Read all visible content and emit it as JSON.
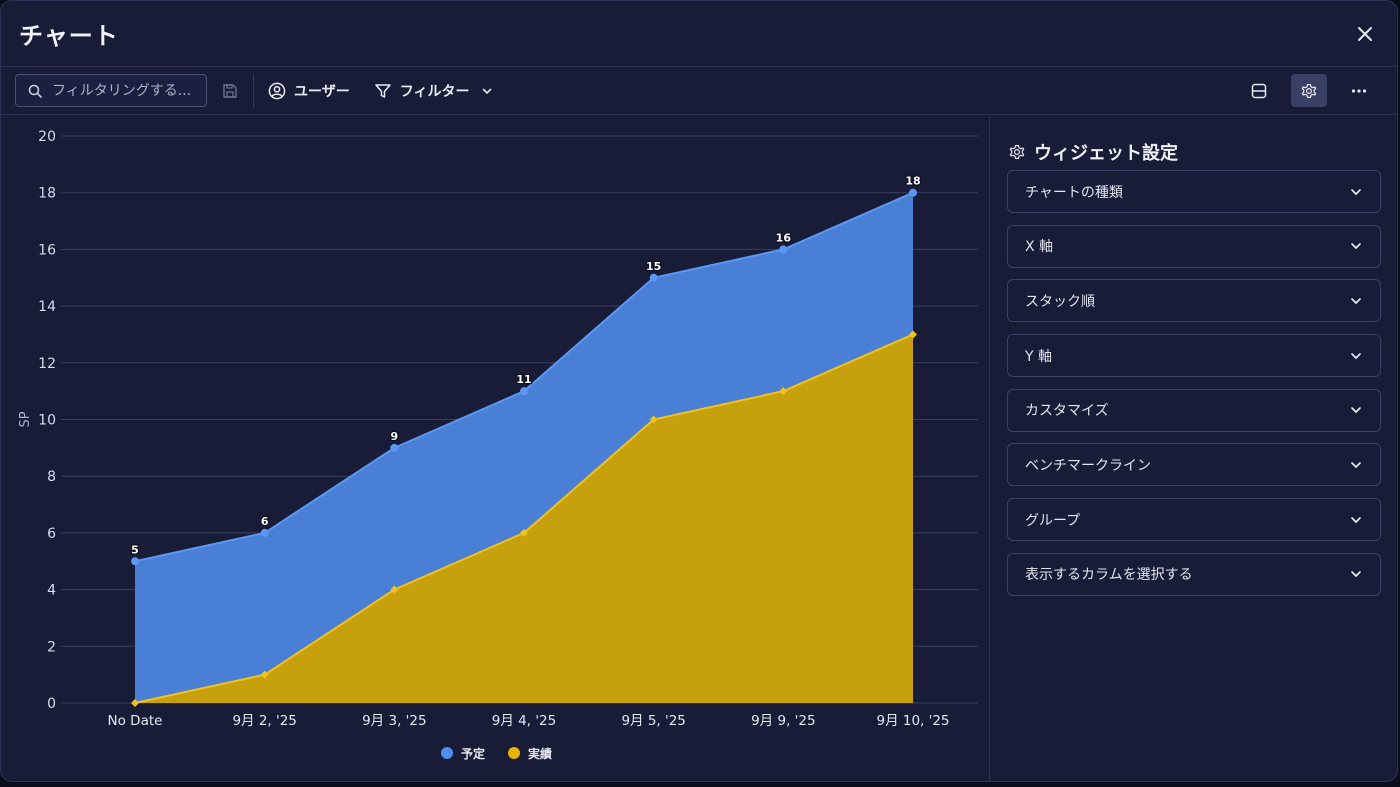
{
  "window": {
    "title": "チャート"
  },
  "toolbar": {
    "search_placeholder": "フィルタリングする...",
    "user_label": "ユーザー",
    "filter_label": "フィルター"
  },
  "panel": {
    "title": "ウィジェット設定",
    "sections": [
      "チャートの種類",
      "X 軸",
      "スタック順",
      "Y 軸",
      "カスタマイズ",
      "ベンチマークライン",
      "グループ",
      "表示するカラムを選択する"
    ]
  },
  "colors": {
    "planned": "#4f8ef0",
    "actual": "#e8b400",
    "background": "#181c36"
  },
  "chart_data": {
    "type": "area",
    "categories": [
      "No Date",
      "9月 2, '25",
      "9月 3, '25",
      "9月 4, '25",
      "9月 5, '25",
      "9月 9, '25",
      "9月 10, '25"
    ],
    "series": [
      {
        "name": "予定",
        "values": [
          5,
          6,
          9,
          11,
          15,
          16,
          18
        ],
        "color": "#4f8ef0"
      },
      {
        "name": "実績",
        "values": [
          0,
          1,
          4,
          6,
          10,
          11,
          13
        ],
        "color": "#e8b400"
      }
    ],
    "ylabel": "SP",
    "xlabel": "",
    "ylim": [
      0,
      20
    ],
    "yticks": [
      0,
      2,
      4,
      6,
      8,
      10,
      12,
      14,
      16,
      18,
      20
    ],
    "grid": true,
    "legend": "bottom"
  }
}
